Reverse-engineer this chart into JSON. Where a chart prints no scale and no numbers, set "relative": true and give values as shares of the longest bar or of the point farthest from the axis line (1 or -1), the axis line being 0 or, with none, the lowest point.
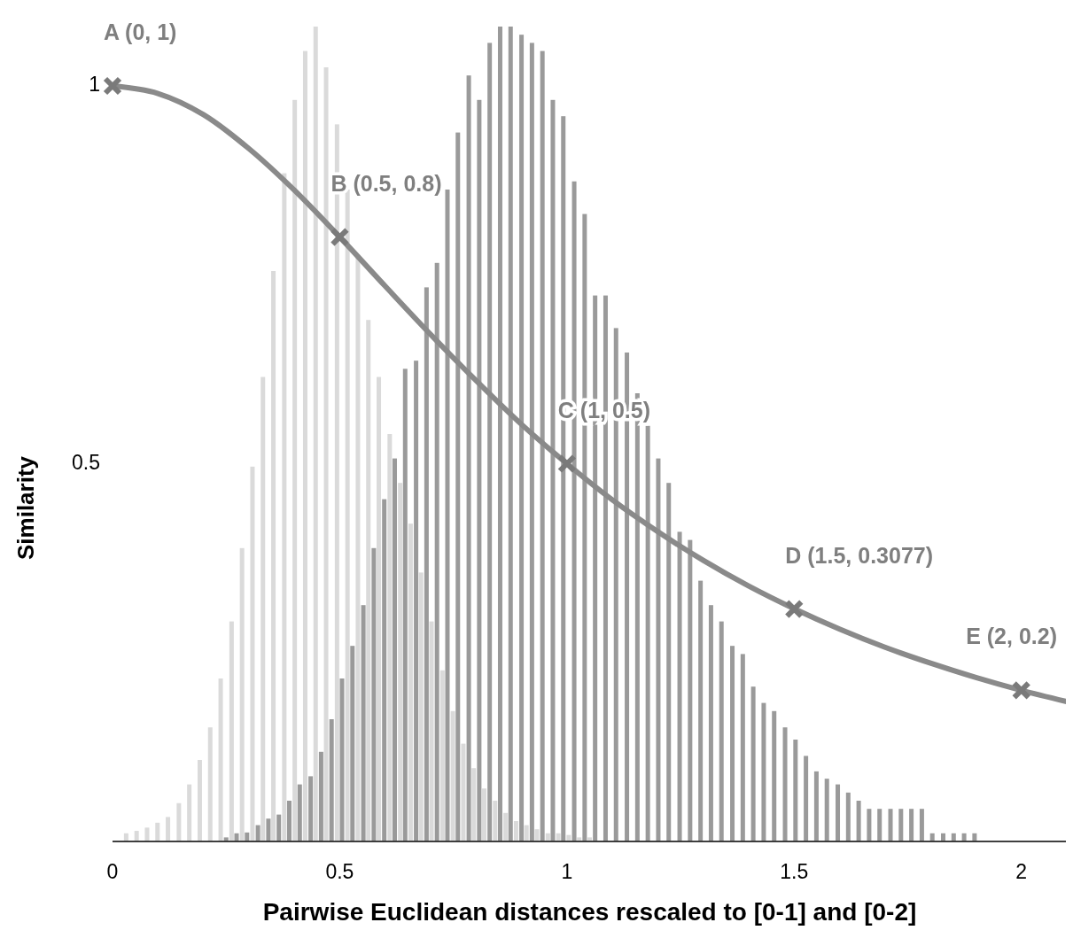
{
  "chart_data": [
    {
      "type": "bar",
      "relative": true,
      "xlim": [
        0,
        2.1
      ],
      "xticks": [
        0,
        0.5,
        1,
        1.5,
        2
      ],
      "tick_labels": false,
      "series": [
        {
          "color": "#dadada",
          "x": [
            0.03,
            0.053,
            0.076,
            0.099,
            0.122,
            0.146,
            0.169,
            0.192,
            0.215,
            0.238,
            0.262,
            0.285,
            0.308,
            0.331,
            0.354,
            0.378,
            0.401,
            0.424,
            0.447,
            0.47,
            0.494,
            0.517,
            0.54,
            0.563,
            0.586,
            0.61,
            0.633,
            0.656,
            0.679,
            0.702,
            0.726,
            0.749,
            0.772,
            0.795,
            0.818,
            0.842,
            0.865,
            0.888,
            0.911,
            0.934,
            0.958,
            0.981,
            1.004,
            1.027,
            1.05
          ],
          "values": [
            0.01,
            0.013,
            0.017,
            0.023,
            0.03,
            0.047,
            0.07,
            0.1,
            0.14,
            0.2,
            0.27,
            0.36,
            0.46,
            0.57,
            0.7,
            0.82,
            0.91,
            0.97,
            1,
            0.95,
            0.88,
            0.8,
            0.72,
            0.64,
            0.57,
            0.5,
            0.44,
            0.39,
            0.33,
            0.27,
            0.21,
            0.16,
            0.12,
            0.09,
            0.065,
            0.05,
            0.035,
            0.025,
            0.02,
            0.015,
            0.01,
            0.01,
            0.008,
            0.005,
            0.005
          ]
        },
        {
          "color": "#9a9a9a",
          "x": [
            0.25,
            0.273,
            0.296,
            0.32,
            0.343,
            0.366,
            0.389,
            0.412,
            0.436,
            0.459,
            0.482,
            0.505,
            0.528,
            0.552,
            0.575,
            0.598,
            0.621,
            0.644,
            0.668,
            0.691,
            0.714,
            0.737,
            0.76,
            0.784,
            0.807,
            0.83,
            0.853,
            0.876,
            0.9,
            0.923,
            0.946,
            0.969,
            0.992,
            1.016,
            1.039,
            1.062,
            1.085,
            1.108,
            1.132,
            1.155,
            1.178,
            1.201,
            1.224,
            1.248,
            1.271,
            1.294,
            1.317,
            1.34,
            1.364,
            1.387,
            1.41,
            1.433,
            1.456,
            1.48,
            1.503,
            1.526,
            1.549,
            1.572,
            1.596,
            1.619,
            1.642,
            1.665,
            1.688,
            1.712,
            1.735,
            1.758,
            1.781,
            1.804,
            1.828,
            1.851,
            1.874,
            1.897
          ],
          "values": [
            0.005,
            0.01,
            0.011,
            0.02,
            0.028,
            0.033,
            0.05,
            0.07,
            0.08,
            0.11,
            0.15,
            0.2,
            0.24,
            0.29,
            0.36,
            0.42,
            0.47,
            0.58,
            0.59,
            0.68,
            0.71,
            0.8,
            0.87,
            0.94,
            0.91,
            0.98,
            1,
            1,
            0.99,
            0.98,
            0.97,
            0.91,
            0.89,
            0.81,
            0.77,
            0.67,
            0.67,
            0.63,
            0.6,
            0.55,
            0.51,
            0.47,
            0.44,
            0.38,
            0.37,
            0.32,
            0.29,
            0.27,
            0.24,
            0.23,
            0.19,
            0.17,
            0.16,
            0.14,
            0.125,
            0.105,
            0.086,
            0.077,
            0.07,
            0.06,
            0.05,
            0.04,
            0.04,
            0.04,
            0.04,
            0.04,
            0.04,
            0.01,
            0.01,
            0.01,
            0.01,
            0.01
          ]
        }
      ]
    },
    {
      "type": "line",
      "xlabel": "Pairwise Euclidean distances rescaled to [0-1] and [0-2]",
      "ylabel": "Similarity",
      "xlim": [
        0,
        2.1
      ],
      "ylim": [
        0,
        1
      ],
      "xticks": [
        0,
        0.5,
        1,
        1.5,
        2
      ],
      "yticks": [
        0.5,
        1
      ],
      "series": [
        {
          "color": "#8a8a8a",
          "x": [
            0,
            0.1,
            0.2,
            0.3,
            0.4,
            0.5,
            0.6,
            0.7,
            0.8,
            0.9,
            1,
            1.1,
            1.2,
            1.3,
            1.4,
            1.5,
            1.6,
            1.7,
            1.8,
            1.9,
            2,
            2.1
          ],
          "values": [
            1,
            0.99,
            0.962,
            0.917,
            0.862,
            0.8,
            0.735,
            0.671,
            0.61,
            0.552,
            0.5,
            0.452,
            0.41,
            0.372,
            0.338,
            0.308,
            0.281,
            0.257,
            0.236,
            0.217,
            0.2,
            0.185
          ]
        },
        {
          "type": "scatter",
          "marker": "cross",
          "color": "#7a7a7a",
          "x": [
            0,
            0.5,
            1,
            1.5,
            2
          ],
          "values": [
            1,
            0.8,
            0.5,
            0.3077,
            0.2
          ]
        }
      ],
      "annotations": [
        {
          "text": "A (0, 1)",
          "x": 0,
          "y": 1
        },
        {
          "text": "B (0.5, 0.8)",
          "x": 0.5,
          "y": 0.8
        },
        {
          "text": "C (1, 0.5)",
          "x": 1,
          "y": 0.5
        },
        {
          "text": "D (1.5, 0.3077)",
          "x": 1.5,
          "y": 0.3077
        },
        {
          "text": "E (2, 0.2)",
          "x": 2,
          "y": 0.2
        }
      ]
    }
  ]
}
